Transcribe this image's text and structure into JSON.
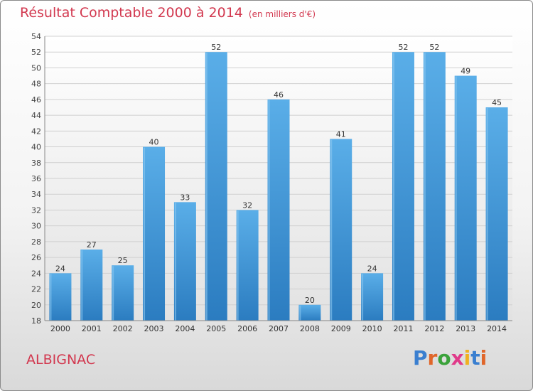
{
  "header": {
    "title": "Résultat Comptable 2000 à 2014",
    "subtitle": "(en milliers d'€)"
  },
  "footer": {
    "town": "ALBIGNAC",
    "logo": "Proxiti"
  },
  "colors": {
    "title": "#d2384f",
    "bar_light": "#5aaee8",
    "bar_dark": "#2b7cc0"
  },
  "chart_data": {
    "type": "bar",
    "categories": [
      "2000",
      "2001",
      "2002",
      "2003",
      "2004",
      "2005",
      "2006",
      "2007",
      "2008",
      "2009",
      "2010",
      "2011",
      "2012",
      "2013",
      "2014"
    ],
    "values": [
      24,
      27,
      25,
      40,
      33,
      52,
      32,
      46,
      20,
      41,
      24,
      52,
      52,
      49,
      45
    ],
    "ylim": [
      18,
      54
    ],
    "yticks": [
      18,
      20,
      22,
      24,
      26,
      28,
      30,
      32,
      34,
      36,
      38,
      40,
      42,
      44,
      46,
      48,
      50,
      52,
      54
    ],
    "grid": true
  }
}
